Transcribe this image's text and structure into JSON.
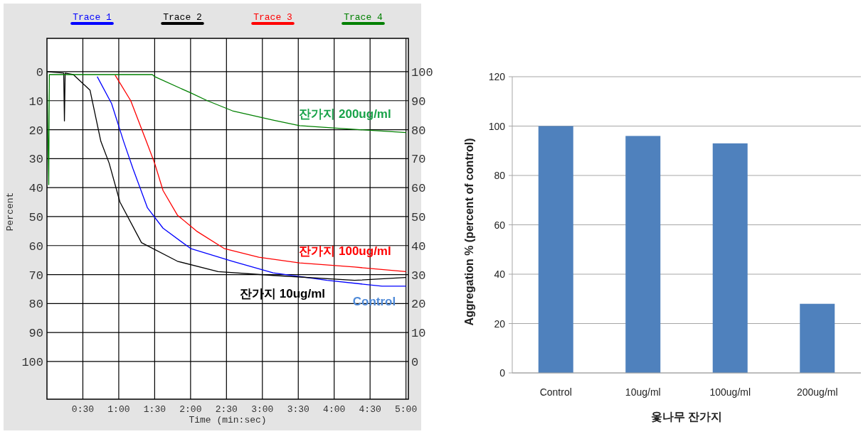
{
  "chart_data": [
    {
      "type": "line",
      "xlabel": "Time (min:sec)",
      "ylabel": "Percent",
      "legend": "top",
      "grid": true,
      "xlim": [
        0,
        302
      ],
      "xticks": [
        {
          "value": 30,
          "label": "0:30"
        },
        {
          "value": 60,
          "label": "1:00"
        },
        {
          "value": 90,
          "label": "1:30"
        },
        {
          "value": 120,
          "label": "2:00"
        },
        {
          "value": 150,
          "label": "2:30"
        },
        {
          "value": 180,
          "label": "3:00"
        },
        {
          "value": 210,
          "label": "3:30"
        },
        {
          "value": 240,
          "label": "4:00"
        },
        {
          "value": 270,
          "label": "4:30"
        },
        {
          "value": 300,
          "label": "5:00"
        }
      ],
      "ylim": [
        113,
        -11.5
      ],
      "yticks": [
        0,
        10,
        20,
        30,
        40,
        50,
        60,
        70,
        80,
        90,
        100
      ],
      "y2lim": [
        -13,
        111.5
      ],
      "y2ticks": [
        100,
        90,
        80,
        70,
        60,
        50,
        40,
        30,
        20,
        10,
        0
      ],
      "series": [
        {
          "name": "Trace 1",
          "color": "#0000ff",
          "x": [
            42,
            54,
            64,
            72,
            84,
            97,
            120,
            155,
            189,
            234,
            280,
            300
          ],
          "values": [
            1.7,
            11,
            24,
            33.6,
            47,
            54,
            61,
            65.4,
            69.4,
            72,
            74,
            74
          ]
        },
        {
          "name": "Trace 2",
          "color": "#000000",
          "x": [
            0,
            14,
            14.6,
            15.2,
            22,
            36,
            45,
            52,
            61,
            79,
            109,
            143,
            189,
            257,
            300
          ],
          "values": [
            0,
            0.5,
            17,
            0.5,
            1,
            6.4,
            24,
            31.6,
            45,
            59,
            65.4,
            69,
            70.3,
            72,
            71
          ]
        },
        {
          "name": "Trace 3",
          "color": "#ff0000",
          "x": [
            57,
            70,
            83,
            90,
            97,
            109,
            125,
            148,
            177,
            211,
            257,
            300
          ],
          "values": [
            1.2,
            10,
            24,
            31.6,
            41,
            49.5,
            55,
            61,
            64,
            66,
            67.4,
            69
          ]
        },
        {
          "name": "Trace 4",
          "color": "#008000",
          "x": [
            0,
            1.5,
            2,
            88,
            90,
            120,
            134,
            155,
            189,
            211,
            246,
            300
          ],
          "values": [
            0,
            39,
            1,
            1,
            1.7,
            7.3,
            10,
            13.5,
            16.7,
            18.6,
            19.6,
            21
          ]
        }
      ],
      "annotations": [
        "잔가지 200ug/ml",
        "잔가지 100ug/ml",
        "잔가지 10ug/ml",
        "Control"
      ]
    },
    {
      "type": "bar",
      "xlabel": "옻나무 잔가지",
      "ylabel": "Aggregation % (percent of control)",
      "grid": "y",
      "categories": [
        "Control",
        "10ug/ml",
        "100ug/ml",
        "200ug/ml"
      ],
      "values": [
        100,
        96,
        93,
        28
      ],
      "color": "#4f81bd",
      "ylim": [
        0,
        120
      ],
      "yticks": [
        0,
        20,
        40,
        60,
        80,
        100,
        120
      ]
    }
  ]
}
